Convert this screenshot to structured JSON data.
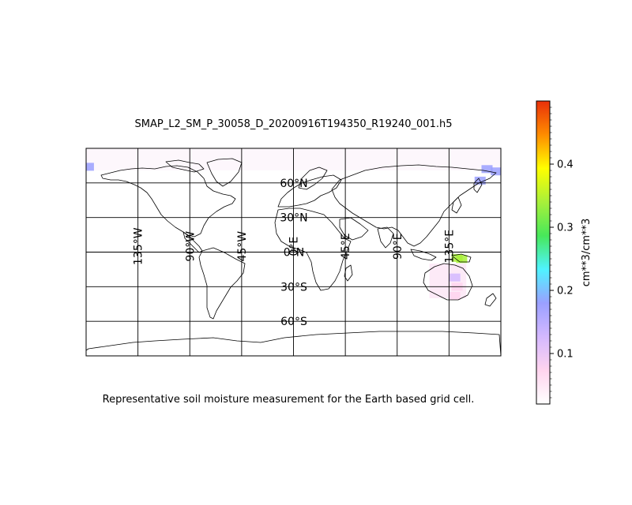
{
  "figure": {
    "title": "SMAP_L2_SM_P_30058_D_20200916T194350_R19240_001.h5",
    "caption": "Representative soil moisture measurement for the Earth based grid cell."
  },
  "map": {
    "projection": "equirectangular",
    "lon_range": [
      -180,
      180
    ],
    "lat_range": [
      -90,
      90
    ],
    "gridlines": "on",
    "meridian_labels": [
      "135°W",
      "90°W",
      "45°W",
      "0°E",
      "45°E",
      "90°E",
      "135°E"
    ],
    "parallel_labels": [
      "60°N",
      "30°N",
      "0°N",
      "30°S",
      "60°S"
    ]
  },
  "colorbar": {
    "label": "cm**3/cm**3",
    "range": [
      0.02,
      0.5
    ],
    "tick_labels": [
      "0.1",
      "0.2",
      "0.3",
      "0.4"
    ],
    "colors": [
      "#ffffff",
      "#ffd4ee",
      "#d4b8ff",
      "#9aa0ff",
      "#4ff3ff",
      "#47e85a",
      "#a8f03a",
      "#ffff00",
      "#ff8c00",
      "#e8300a"
    ]
  },
  "chart_data": {
    "type": "heatmap",
    "title": "SMAP_L2_SM_P_30058_D_20200916T194350_R19240_001.h5",
    "value_label": "cm**3/cm**3",
    "vmin": 0.02,
    "vmax": 0.5,
    "swath_points": [
      {
        "lon": -178,
        "lat": 74,
        "value": 0.2
      },
      {
        "lon": 168,
        "lat": 72,
        "value": 0.18
      },
      {
        "lon": 176,
        "lat": 70,
        "value": 0.19
      },
      {
        "lon": 162,
        "lat": 62,
        "value": 0.2
      },
      {
        "lon": 142,
        "lat": -5,
        "value": 0.34
      },
      {
        "lon": 146,
        "lat": -6,
        "value": 0.32
      },
      {
        "lon": 140,
        "lat": -22,
        "value": 0.1
      },
      {
        "lon": 142,
        "lat": -30,
        "value": 0.08
      },
      {
        "lon": 140,
        "lat": -38,
        "value": 0.09
      }
    ]
  }
}
